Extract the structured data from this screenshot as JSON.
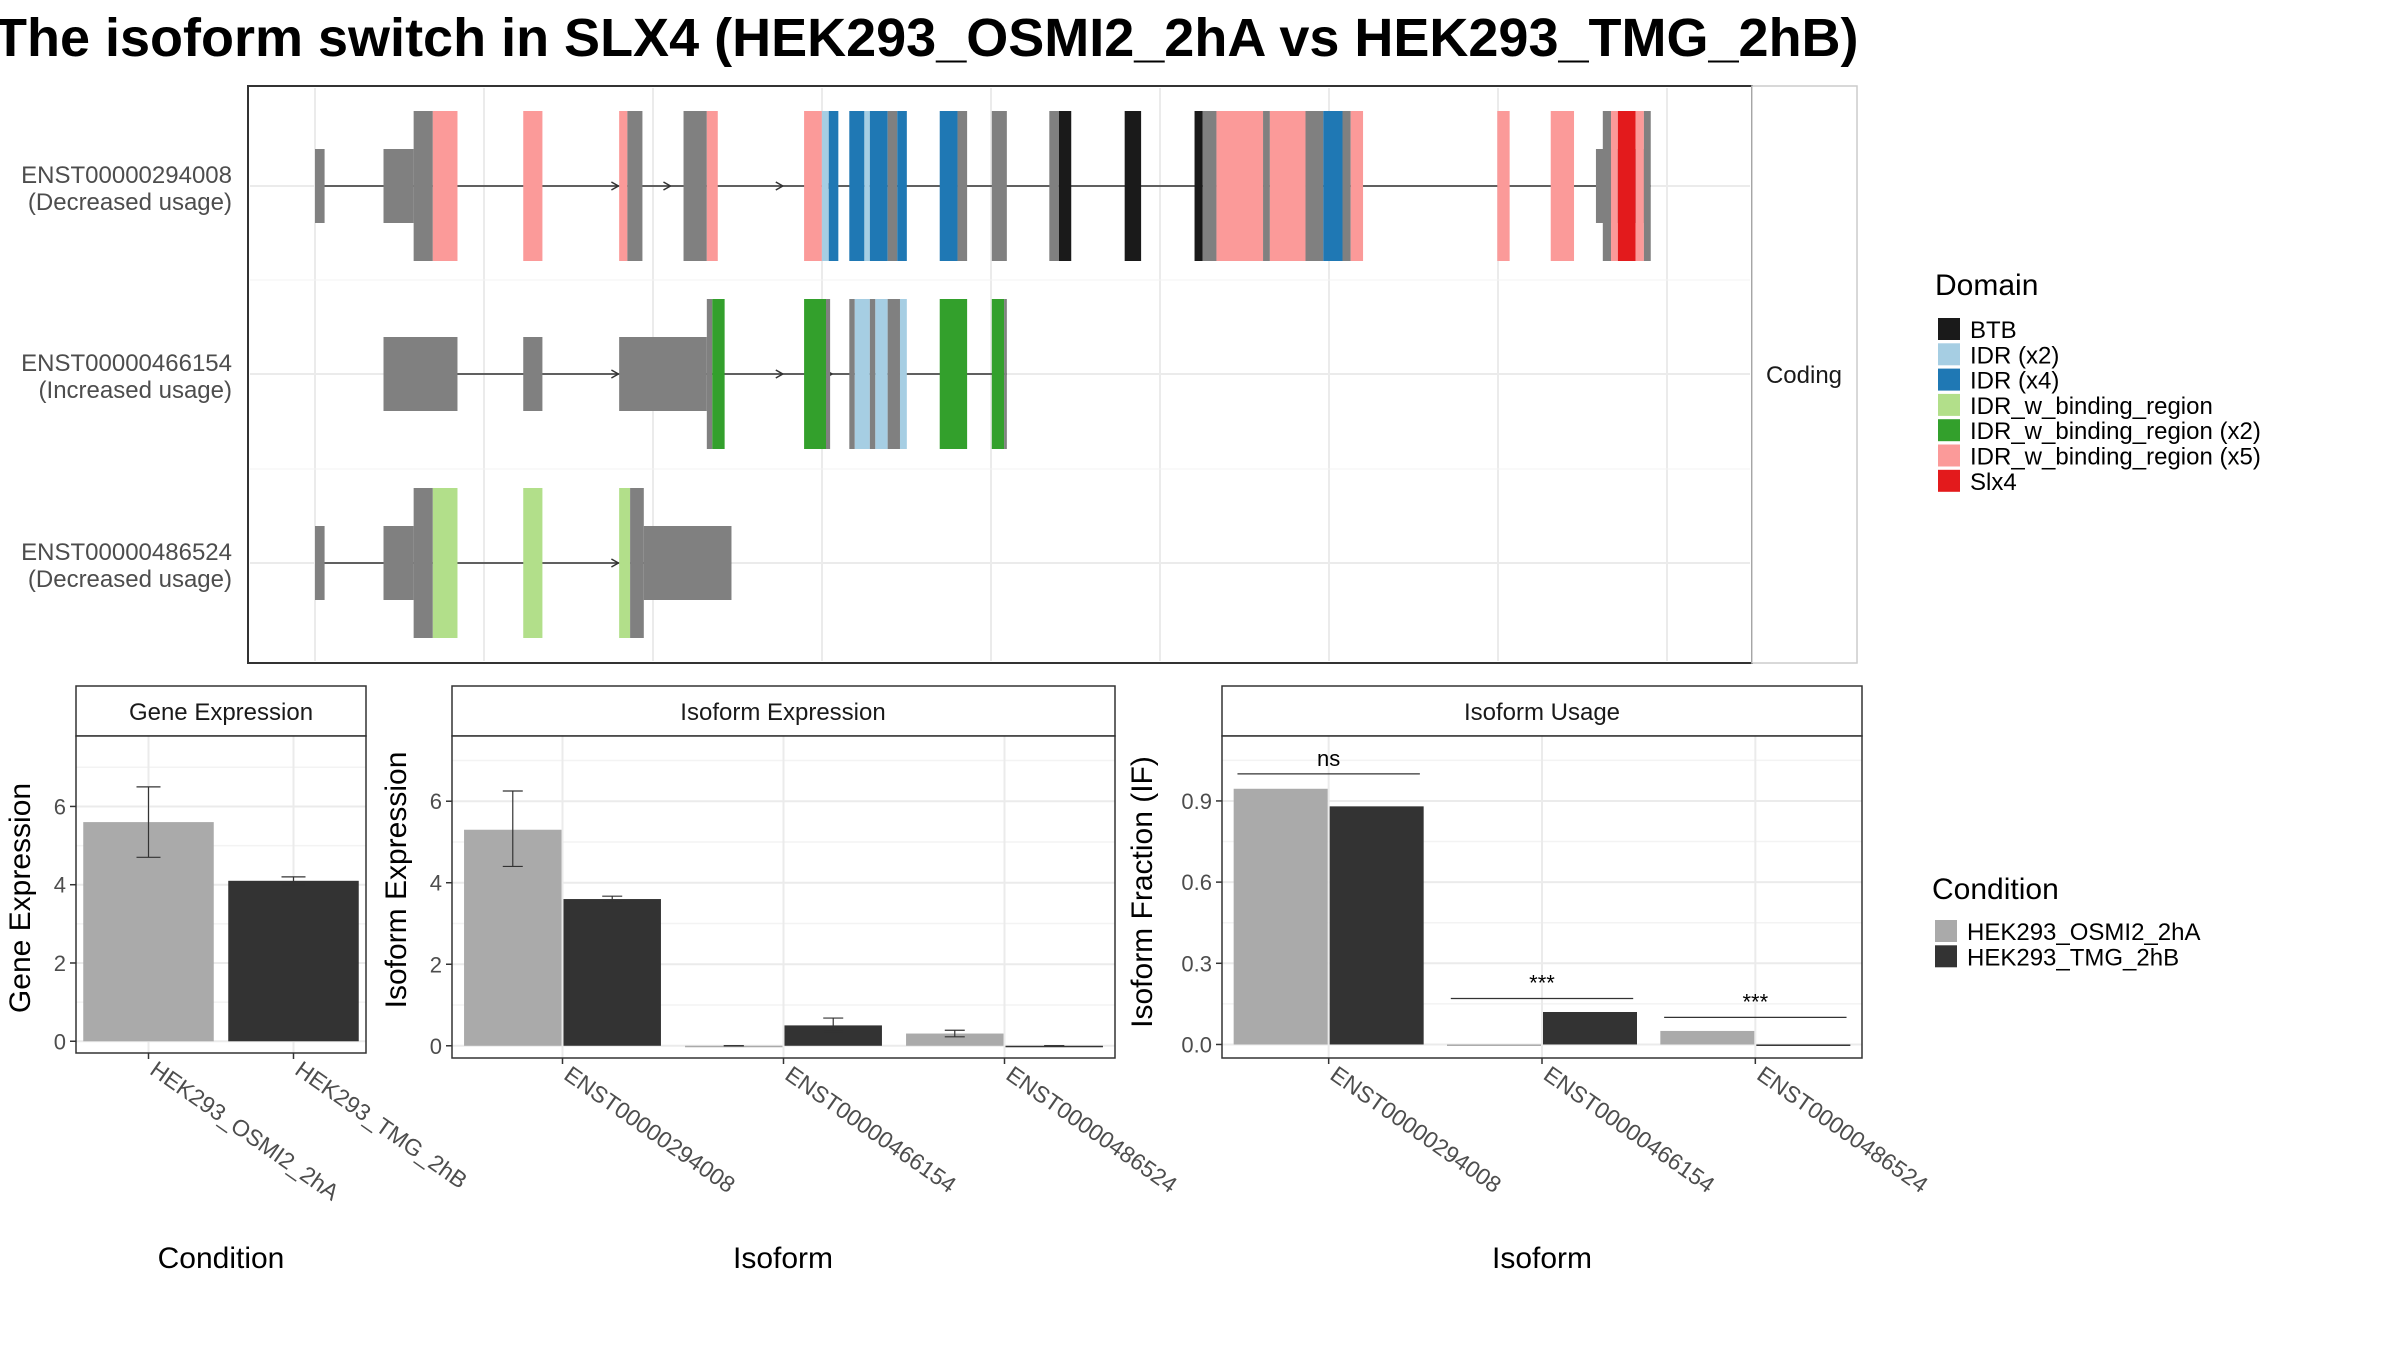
{
  "title": "The isoform switch in SLX4 (HEK293_OSMI2_2hA vs HEK293_TMG_2hB)",
  "structure_panel": {
    "facet_label": "Coding",
    "isoforms": [
      {
        "id": "ENST00000294008",
        "note": "(Decreased usage)"
      },
      {
        "id": "ENST00000466154",
        "note": "(Increased usage)"
      },
      {
        "id": "ENST00000486524",
        "note": "(Decreased usage)"
      }
    ]
  },
  "domain_legend": {
    "title": "Domain",
    "items": [
      {
        "label": "BTB",
        "color": "#1a1a1a"
      },
      {
        "label": "IDR (x2)",
        "color": "#a6cee3"
      },
      {
        "label": "IDR (x4)",
        "color": "#1f78b4"
      },
      {
        "label": "IDR_w_binding_region",
        "color": "#b2df8a"
      },
      {
        "label": "IDR_w_binding_region (x2)",
        "color": "#33a02c"
      },
      {
        "label": "IDR_w_binding_region (x5)",
        "color": "#fb9a99"
      },
      {
        "label": "Slx4",
        "color": "#e31a1c"
      }
    ]
  },
  "condition_legend": {
    "title": "Condition",
    "items": [
      {
        "label": "HEK293_OSMI2_2hA",
        "color": "#aaaaaa"
      },
      {
        "label": "HEK293_TMG_2hB",
        "color": "#333333"
      }
    ]
  },
  "chart_data": [
    {
      "type": "diagram",
      "panel": "isoform-structure",
      "x_unit": "relative genomic position (0-100, estimated)",
      "domain_colors": {
        "BTB": "#1a1a1a",
        "IDR (x2)": "#a6cee3",
        "IDR (x4)": "#1f78b4",
        "IDR_w_binding_region": "#b2df8a",
        "IDR_w_binding_region (x2)": "#33a02c",
        "IDR_w_binding_region (x5)": "#fb9a99",
        "Slx4": "#e31a1c",
        "none": "#808080"
      },
      "intron_arrows": [
        [
          22,
          25.8
        ],
        [
          34,
          37.6
        ]
      ],
      "transcripts": [
        {
          "id": "ENST00000294008",
          "utr": [
            [
              0,
              0.7
            ],
            [
              5,
              7.2
            ],
            [
              93.5,
              97.2
            ]
          ],
          "cds": [
            [
              7.2,
              8.6,
              "none"
            ],
            [
              8.6,
              10.4,
              "IDR_w_binding_region (x5)"
            ],
            [
              15.2,
              16.6,
              "IDR_w_binding_region (x5)"
            ],
            [
              22.2,
              22.8,
              "IDR_w_binding_region (x5)"
            ],
            [
              22.8,
              23.9,
              "none"
            ],
            [
              26.9,
              28.6,
              "none"
            ],
            [
              28.6,
              29.4,
              "IDR_w_binding_region (x5)"
            ],
            [
              35.7,
              37.0,
              "IDR_w_binding_region (x5)"
            ],
            [
              37.0,
              37.5,
              "IDR (x2)"
            ],
            [
              37.5,
              38.2,
              "IDR (x4)"
            ],
            [
              39.0,
              40.1,
              "IDR (x4)"
            ],
            [
              40.1,
              40.5,
              "IDR (x2)"
            ],
            [
              40.5,
              41.8,
              "IDR (x4)"
            ],
            [
              41.8,
              42.5,
              "none"
            ],
            [
              42.5,
              43.2,
              "IDR (x4)"
            ],
            [
              45.6,
              46.9,
              "IDR (x4)"
            ],
            [
              46.9,
              47.6,
              "none"
            ],
            [
              49.4,
              50.5,
              "none"
            ],
            [
              53.6,
              54.3,
              "none"
            ],
            [
              54.3,
              55.2,
              "BTB"
            ],
            [
              59.1,
              60.3,
              "BTB"
            ],
            [
              64.2,
              64.8,
              "BTB"
            ],
            [
              64.8,
              65.8,
              "none"
            ],
            [
              65.8,
              69.2,
              "IDR_w_binding_region (x5)"
            ],
            [
              69.2,
              69.7,
              "none"
            ],
            [
              69.7,
              72.3,
              "IDR_w_binding_region (x5)"
            ],
            [
              72.3,
              73.6,
              "none"
            ],
            [
              73.6,
              75.0,
              "IDR (x4)"
            ],
            [
              75.0,
              75.6,
              "none"
            ],
            [
              75.6,
              76.5,
              "IDR_w_binding_region (x5)"
            ],
            [
              86.3,
              87.2,
              "IDR_w_binding_region (x5)"
            ],
            [
              90.2,
              91.9,
              "IDR_w_binding_region (x5)"
            ],
            [
              94.0,
              94.6,
              "none"
            ],
            [
              94.6,
              95.1,
              "IDR_w_binding_region (x5)"
            ],
            [
              95.1,
              96.4,
              "Slx4"
            ],
            [
              96.4,
              97.0,
              "IDR_w_binding_region (x5)"
            ],
            [
              97.0,
              97.5,
              "none"
            ]
          ]
        },
        {
          "id": "ENST00000466154",
          "utr": [
            [
              5,
              10.4
            ],
            [
              15.2,
              16.6
            ],
            [
              22.2,
              28.6
            ]
          ],
          "cds": [
            [
              28.6,
              29.0,
              "none"
            ],
            [
              29.0,
              29.9,
              "IDR_w_binding_region (x2)"
            ],
            [
              35.7,
              37.3,
              "IDR_w_binding_region (x2)"
            ],
            [
              37.3,
              37.6,
              "none"
            ],
            [
              39.0,
              39.4,
              "none"
            ],
            [
              39.4,
              40.5,
              "IDR (x2)"
            ],
            [
              40.5,
              40.9,
              "none"
            ],
            [
              40.9,
              41.8,
              "IDR (x2)"
            ],
            [
              41.8,
              42.7,
              "none"
            ],
            [
              42.7,
              43.2,
              "IDR (x2)"
            ],
            [
              45.6,
              47.6,
              "IDR_w_binding_region (x2)"
            ],
            [
              49.4,
              50.3,
              "IDR_w_binding_region (x2)"
            ],
            [
              50.3,
              50.5,
              "none"
            ]
          ]
        },
        {
          "id": "ENST00000486524",
          "utr": [
            [
              0,
              0.7
            ],
            [
              5,
              7.2
            ],
            [
              24,
              30.4
            ]
          ],
          "cds": [
            [
              7.2,
              8.6,
              "none"
            ],
            [
              8.6,
              10.4,
              "IDR_w_binding_region"
            ],
            [
              15.2,
              16.6,
              "IDR_w_binding_region"
            ],
            [
              22.2,
              23.0,
              "IDR_w_binding_region"
            ],
            [
              23.0,
              24.0,
              "none"
            ]
          ]
        }
      ]
    },
    {
      "type": "bar",
      "title": "Gene Expression",
      "xlabel": "Condition",
      "ylabel": "Gene Expression",
      "categories": [
        "HEK293_OSMI2_2hA",
        "HEK293_TMG_2hB"
      ],
      "values": [
        5.6,
        4.1
      ],
      "error": [
        [
          4.7,
          6.5
        ],
        [
          4.0,
          4.2
        ]
      ],
      "colors": [
        "#aaaaaa",
        "#333333"
      ],
      "ylim": [
        -0.3,
        7.8
      ],
      "yticks": [
        0,
        2,
        4,
        6
      ]
    },
    {
      "type": "bar",
      "title": "Isoform Expression",
      "xlabel": "Isoform",
      "ylabel": "Isoform Expression",
      "categories": [
        "ENST00000294008",
        "ENST00000466154",
        "ENST00000486524"
      ],
      "series": [
        {
          "name": "HEK293_OSMI2_2hA",
          "values": [
            5.3,
            0.0,
            0.3
          ],
          "error": [
            [
              4.4,
              6.25
            ],
            [
              0.0,
              0.0
            ],
            [
              0.22,
              0.38
            ]
          ]
        },
        {
          "name": "HEK293_TMG_2hB",
          "values": [
            3.6,
            0.5,
            0.0
          ],
          "error": [
            [
              3.55,
              3.67
            ],
            [
              0.35,
              0.68
            ],
            [
              0.0,
              0.0
            ]
          ]
        }
      ],
      "colors": [
        "#aaaaaa",
        "#333333"
      ],
      "ylim": [
        -0.3,
        7.6
      ],
      "yticks": [
        0,
        2,
        4,
        6
      ]
    },
    {
      "type": "bar",
      "title": "Isoform Usage",
      "xlabel": "Isoform",
      "ylabel": "Isoform Fraction (IF)",
      "categories": [
        "ENST00000294008",
        "ENST00000466154",
        "ENST00000486524"
      ],
      "series": [
        {
          "name": "HEK293_OSMI2_2hA",
          "values": [
            0.945,
            0.0,
            0.05
          ]
        },
        {
          "name": "HEK293_TMG_2hB",
          "values": [
            0.88,
            0.12,
            0.0
          ]
        }
      ],
      "colors": [
        "#aaaaaa",
        "#333333"
      ],
      "ylim": [
        -0.05,
        1.14
      ],
      "yticks": [
        0.0,
        0.3,
        0.6,
        0.9
      ],
      "ytick_labels": [
        "0.0",
        "0.3",
        "0.6",
        "0.9"
      ],
      "significance": [
        {
          "category": "ENST00000294008",
          "label": "ns",
          "y": 1.0
        },
        {
          "category": "ENST00000466154",
          "label": "***",
          "y": 0.17
        },
        {
          "category": "ENST00000486524",
          "label": "***",
          "y": 0.1
        }
      ]
    }
  ]
}
